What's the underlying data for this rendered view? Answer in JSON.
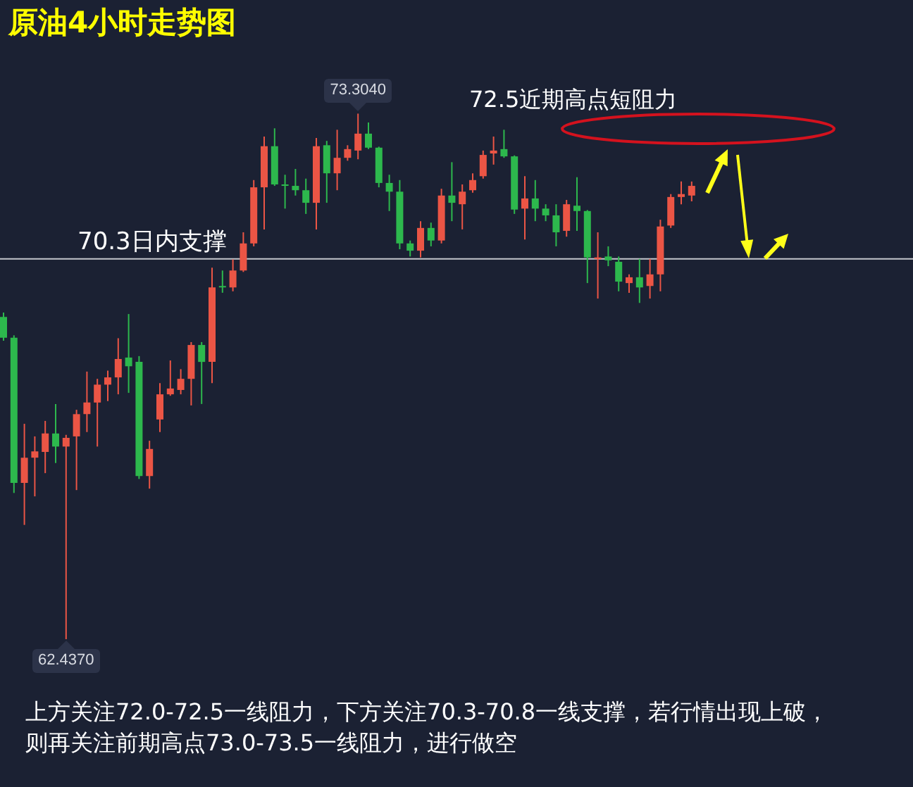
{
  "chart_data": {
    "type": "candlestick",
    "title": "原油4小时走势图",
    "categories": [
      null,
      null,
      null,
      null,
      null,
      null,
      null,
      null,
      null,
      null,
      null,
      null,
      null,
      null,
      null,
      null,
      null,
      null,
      null,
      null,
      null,
      null,
      null,
      null,
      null,
      null,
      null,
      null,
      null,
      null,
      null,
      null,
      null,
      null,
      null,
      null,
      null,
      null,
      null,
      null,
      null,
      null,
      null,
      null,
      null,
      null,
      null,
      null,
      null,
      null,
      null,
      null,
      null,
      null,
      null,
      null,
      null,
      null,
      null,
      null,
      null,
      null,
      null,
      null,
      null,
      null,
      null
    ],
    "ohlc": [
      [
        69.1,
        69.19,
        68.61,
        68.67
      ],
      [
        68.67,
        68.72,
        65.46,
        65.67
      ],
      [
        65.67,
        66.89,
        64.8,
        66.19
      ],
      [
        66.19,
        66.63,
        65.39,
        66.32
      ],
      [
        66.31,
        66.95,
        65.87,
        66.69
      ],
      [
        66.69,
        67.3,
        66.08,
        66.42
      ],
      [
        66.42,
        66.66,
        62.437,
        66.6
      ],
      [
        66.63,
        67.18,
        65.52,
        67.09
      ],
      [
        67.09,
        67.97,
        66.72,
        67.33
      ],
      [
        67.33,
        67.82,
        66.42,
        67.7
      ],
      [
        67.7,
        67.99,
        67.36,
        67.85
      ],
      [
        67.85,
        68.66,
        67.5,
        68.23
      ],
      [
        68.26,
        69.16,
        67.53,
        68.08
      ],
      [
        68.17,
        68.29,
        65.75,
        65.81
      ],
      [
        65.81,
        66.54,
        65.55,
        66.37
      ],
      [
        66.98,
        67.73,
        66.72,
        67.5
      ],
      [
        67.5,
        68.2,
        67.47,
        67.62
      ],
      [
        67.59,
        68.02,
        67.5,
        67.82
      ],
      [
        67.82,
        68.58,
        67.27,
        68.52
      ],
      [
        68.52,
        68.58,
        67.3,
        68.17
      ],
      [
        68.17,
        70.12,
        67.73,
        69.71
      ],
      [
        69.74,
        70.06,
        69.6,
        69.71
      ],
      [
        69.71,
        70.29,
        69.63,
        70.06
      ],
      [
        70.06,
        70.85,
        70.03,
        70.62
      ],
      [
        70.62,
        71.93,
        70.56,
        71.78
      ],
      [
        71.78,
        72.83,
        70.91,
        72.63
      ],
      [
        72.63,
        73.0,
        71.81,
        71.84
      ],
      [
        71.84,
        72.04,
        71.34,
        71.81
      ],
      [
        71.81,
        72.16,
        71.61,
        71.72
      ],
      [
        71.72,
        71.96,
        71.23,
        71.46
      ],
      [
        71.46,
        72.8,
        70.91,
        72.63
      ],
      [
        72.65,
        72.74,
        71.46,
        72.07
      ],
      [
        72.07,
        72.97,
        71.72,
        72.39
      ],
      [
        72.39,
        72.65,
        72.33,
        72.57
      ],
      [
        72.54,
        73.304,
        72.36,
        72.89
      ],
      [
        72.89,
        73.12,
        72.57,
        72.6
      ],
      [
        72.6,
        72.62,
        71.78,
        71.87
      ],
      [
        71.87,
        72.04,
        71.29,
        71.69
      ],
      [
        71.69,
        71.93,
        70.5,
        70.62
      ],
      [
        70.62,
        70.68,
        70.35,
        70.47
      ],
      [
        70.47,
        71.08,
        70.33,
        70.94
      ],
      [
        70.94,
        71.05,
        70.56,
        70.68
      ],
      [
        70.68,
        71.75,
        70.62,
        71.61
      ],
      [
        71.61,
        72.3,
        71.08,
        71.46
      ],
      [
        71.43,
        71.84,
        70.91,
        71.69
      ],
      [
        71.72,
        72.07,
        71.67,
        71.93
      ],
      [
        72.01,
        72.54,
        71.96,
        72.45
      ],
      [
        72.48,
        72.83,
        72.25,
        72.54
      ],
      [
        72.57,
        72.97,
        72.39,
        72.42
      ],
      [
        72.42,
        72.44,
        71.23,
        71.32
      ],
      [
        71.34,
        72.01,
        70.7,
        71.55
      ],
      [
        71.55,
        71.93,
        71.08,
        71.34
      ],
      [
        71.34,
        71.43,
        71.08,
        71.2
      ],
      [
        71.2,
        71.43,
        70.56,
        70.85
      ],
      [
        70.88,
        71.52,
        70.76,
        71.43
      ],
      [
        71.4,
        71.99,
        70.88,
        71.29
      ],
      [
        71.29,
        71.31,
        69.8,
        70.33
      ],
      [
        70.3,
        70.85,
        69.48,
        70.33
      ],
      [
        70.35,
        70.56,
        70.15,
        70.27
      ],
      [
        70.24,
        70.35,
        69.63,
        69.83
      ],
      [
        69.8,
        69.98,
        69.6,
        69.92
      ],
      [
        69.92,
        70.3,
        69.39,
        69.71
      ],
      [
        69.74,
        70.3,
        69.48,
        69.98
      ],
      [
        69.98,
        71.11,
        69.63,
        70.97
      ],
      [
        70.99,
        71.64,
        70.94,
        71.58
      ],
      [
        71.58,
        71.9,
        71.43,
        71.64
      ],
      [
        71.61,
        71.9,
        71.49,
        71.81
      ]
    ],
    "colors": [
      "#2db84d",
      "#2db84d",
      "#eb5545",
      "#eb5545",
      "#eb5545",
      "#2db84d",
      "#eb5545",
      "#eb5545",
      "#eb5545",
      "#eb5545",
      "#eb5545",
      "#eb5545",
      "#2db84d",
      "#2db84d",
      "#eb5545",
      "#eb5545",
      "#eb5545",
      "#eb5545",
      "#eb5545",
      "#2db84d",
      "#eb5545",
      "#2db84d",
      "#eb5545",
      "#eb5545",
      "#eb5545",
      "#eb5545",
      "#2db84d",
      "#2db84d",
      "#2db84d",
      "#2db84d",
      "#eb5545",
      "#2db84d",
      "#eb5545",
      "#eb5545",
      "#eb5545",
      "#2db84d",
      "#2db84d",
      "#2db84d",
      "#2db84d",
      "#2db84d",
      "#eb5545",
      "#2db84d",
      "#eb5545",
      "#2db84d",
      "#eb5545",
      "#eb5545",
      "#eb5545",
      "#eb5545",
      "#2db84d",
      "#2db84d",
      "#eb5545",
      "#2db84d",
      "#2db84d",
      "#2db84d",
      "#eb5545",
      "#2db84d",
      "#2db84d",
      "#eb5545",
      "#2db84d",
      "#2db84d",
      "#eb5545",
      "#2db84d",
      "#eb5545",
      "#eb5545",
      "#eb5545",
      "#eb5545",
      "#eb5545"
    ],
    "ref_lines": [
      {
        "axis": "y",
        "value": 70.3,
        "label": "70.3日内支撑",
        "color": "#c3c6cc"
      }
    ],
    "annotations": [
      {
        "text": "73.3040",
        "y": 73.304
      },
      {
        "text": "62.4370",
        "y": 62.437
      },
      "72.5近期高点短阻力",
      "上方关注72.0-72.5一线阻力，下方关注70.3-70.8一线支撑，若行情出现上破，",
      "则再关注前期高点73.0-73.5一线阻力，进行做空"
    ],
    "tick_labels": false
  }
}
